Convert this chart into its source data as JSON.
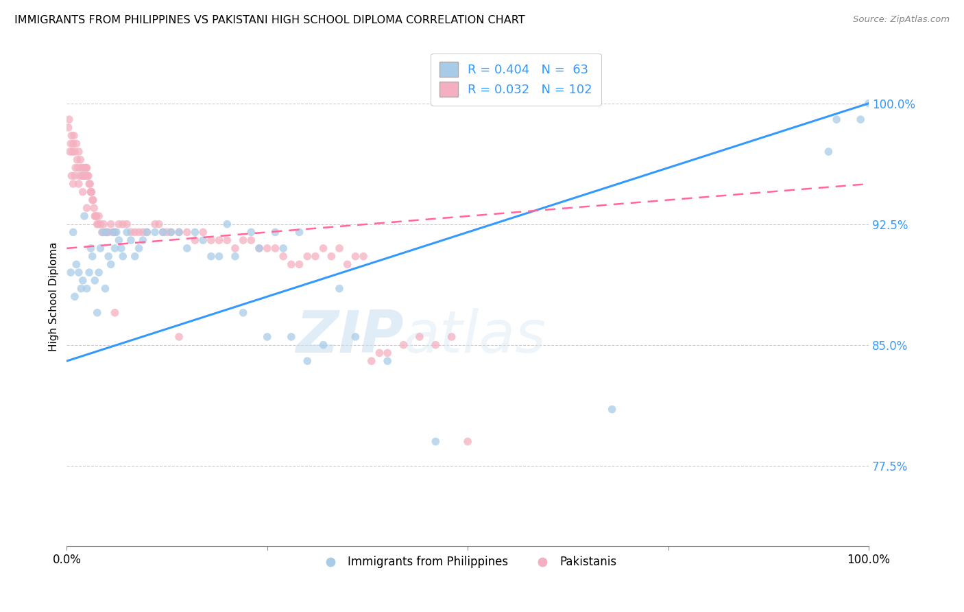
{
  "title": "IMMIGRANTS FROM PHILIPPINES VS PAKISTANI HIGH SCHOOL DIPLOMA CORRELATION CHART",
  "source": "Source: ZipAtlas.com",
  "ylabel": "High School Diploma",
  "yticks": [
    0.775,
    0.85,
    0.925,
    1.0
  ],
  "ytick_labels": [
    "77.5%",
    "85.0%",
    "92.5%",
    "100.0%"
  ],
  "xlim": [
    0.0,
    1.0
  ],
  "ylim": [
    0.725,
    1.035
  ],
  "legend_blue_R": "0.404",
  "legend_blue_N": "63",
  "legend_pink_R": "0.032",
  "legend_pink_N": "102",
  "legend_entries": [
    "Immigrants from Philippines",
    "Pakistanis"
  ],
  "blue_color": "#a8cce8",
  "pink_color": "#f4afc0",
  "blue_line_color": "#3399ff",
  "pink_line_color": "#ff6699",
  "watermark_zip": "ZIP",
  "watermark_atlas": "atlas",
  "blue_scatter_x": [
    0.005,
    0.008,
    0.01,
    0.012,
    0.015,
    0.018,
    0.02,
    0.022,
    0.025,
    0.028,
    0.03,
    0.032,
    0.035,
    0.038,
    0.04,
    0.042,
    0.045,
    0.048,
    0.05,
    0.052,
    0.055,
    0.058,
    0.06,
    0.062,
    0.065,
    0.068,
    0.07,
    0.075,
    0.08,
    0.085,
    0.09,
    0.095,
    0.1,
    0.11,
    0.12,
    0.13,
    0.14,
    0.15,
    0.16,
    0.17,
    0.18,
    0.19,
    0.2,
    0.21,
    0.22,
    0.23,
    0.24,
    0.25,
    0.26,
    0.27,
    0.28,
    0.29,
    0.3,
    0.32,
    0.34,
    0.36,
    0.4,
    0.46,
    0.68,
    0.95,
    0.96,
    0.99,
    1.0
  ],
  "blue_scatter_y": [
    0.895,
    0.92,
    0.88,
    0.9,
    0.895,
    0.885,
    0.89,
    0.93,
    0.885,
    0.895,
    0.91,
    0.905,
    0.89,
    0.87,
    0.895,
    0.91,
    0.92,
    0.885,
    0.92,
    0.905,
    0.9,
    0.92,
    0.91,
    0.92,
    0.915,
    0.91,
    0.905,
    0.92,
    0.915,
    0.905,
    0.91,
    0.915,
    0.92,
    0.92,
    0.92,
    0.92,
    0.92,
    0.91,
    0.92,
    0.915,
    0.905,
    0.905,
    0.925,
    0.905,
    0.87,
    0.92,
    0.91,
    0.855,
    0.92,
    0.91,
    0.855,
    0.92,
    0.84,
    0.85,
    0.885,
    0.855,
    0.84,
    0.79,
    0.81,
    0.97,
    0.99,
    0.99,
    1.0
  ],
  "pink_scatter_x": [
    0.002,
    0.003,
    0.004,
    0.005,
    0.006,
    0.007,
    0.008,
    0.009,
    0.01,
    0.011,
    0.012,
    0.013,
    0.014,
    0.015,
    0.016,
    0.017,
    0.018,
    0.019,
    0.02,
    0.021,
    0.022,
    0.023,
    0.024,
    0.025,
    0.026,
    0.027,
    0.028,
    0.029,
    0.03,
    0.031,
    0.032,
    0.033,
    0.034,
    0.035,
    0.036,
    0.037,
    0.038,
    0.039,
    0.04,
    0.042,
    0.044,
    0.046,
    0.048,
    0.05,
    0.052,
    0.055,
    0.058,
    0.06,
    0.065,
    0.07,
    0.075,
    0.08,
    0.085,
    0.09,
    0.095,
    0.1,
    0.11,
    0.115,
    0.12,
    0.125,
    0.13,
    0.14,
    0.15,
    0.16,
    0.17,
    0.18,
    0.19,
    0.2,
    0.21,
    0.22,
    0.23,
    0.24,
    0.25,
    0.26,
    0.27,
    0.28,
    0.29,
    0.3,
    0.31,
    0.32,
    0.33,
    0.34,
    0.35,
    0.36,
    0.37,
    0.38,
    0.39,
    0.4,
    0.42,
    0.44,
    0.46,
    0.48,
    0.5,
    0.14,
    0.06,
    0.03,
    0.025,
    0.02,
    0.015,
    0.01,
    0.008,
    0.006
  ],
  "pink_scatter_y": [
    0.985,
    0.99,
    0.97,
    0.975,
    0.98,
    0.97,
    0.975,
    0.98,
    0.97,
    0.96,
    0.975,
    0.965,
    0.96,
    0.97,
    0.955,
    0.965,
    0.96,
    0.955,
    0.96,
    0.955,
    0.96,
    0.955,
    0.96,
    0.96,
    0.955,
    0.955,
    0.95,
    0.95,
    0.945,
    0.945,
    0.94,
    0.94,
    0.935,
    0.93,
    0.93,
    0.93,
    0.925,
    0.925,
    0.93,
    0.925,
    0.92,
    0.925,
    0.92,
    0.92,
    0.92,
    0.925,
    0.92,
    0.92,
    0.925,
    0.925,
    0.925,
    0.92,
    0.92,
    0.92,
    0.92,
    0.92,
    0.925,
    0.925,
    0.92,
    0.92,
    0.92,
    0.92,
    0.92,
    0.915,
    0.92,
    0.915,
    0.915,
    0.915,
    0.91,
    0.915,
    0.915,
    0.91,
    0.91,
    0.91,
    0.905,
    0.9,
    0.9,
    0.905,
    0.905,
    0.91,
    0.905,
    0.91,
    0.9,
    0.905,
    0.905,
    0.84,
    0.845,
    0.845,
    0.85,
    0.855,
    0.85,
    0.855,
    0.79,
    0.855,
    0.87,
    0.945,
    0.935,
    0.945,
    0.95,
    0.955,
    0.95,
    0.955
  ],
  "blue_trend_x": [
    0.0,
    1.0
  ],
  "blue_trend_y": [
    0.84,
    1.0
  ],
  "pink_trend_x": [
    0.0,
    1.0
  ],
  "pink_trend_y": [
    0.91,
    0.95
  ]
}
